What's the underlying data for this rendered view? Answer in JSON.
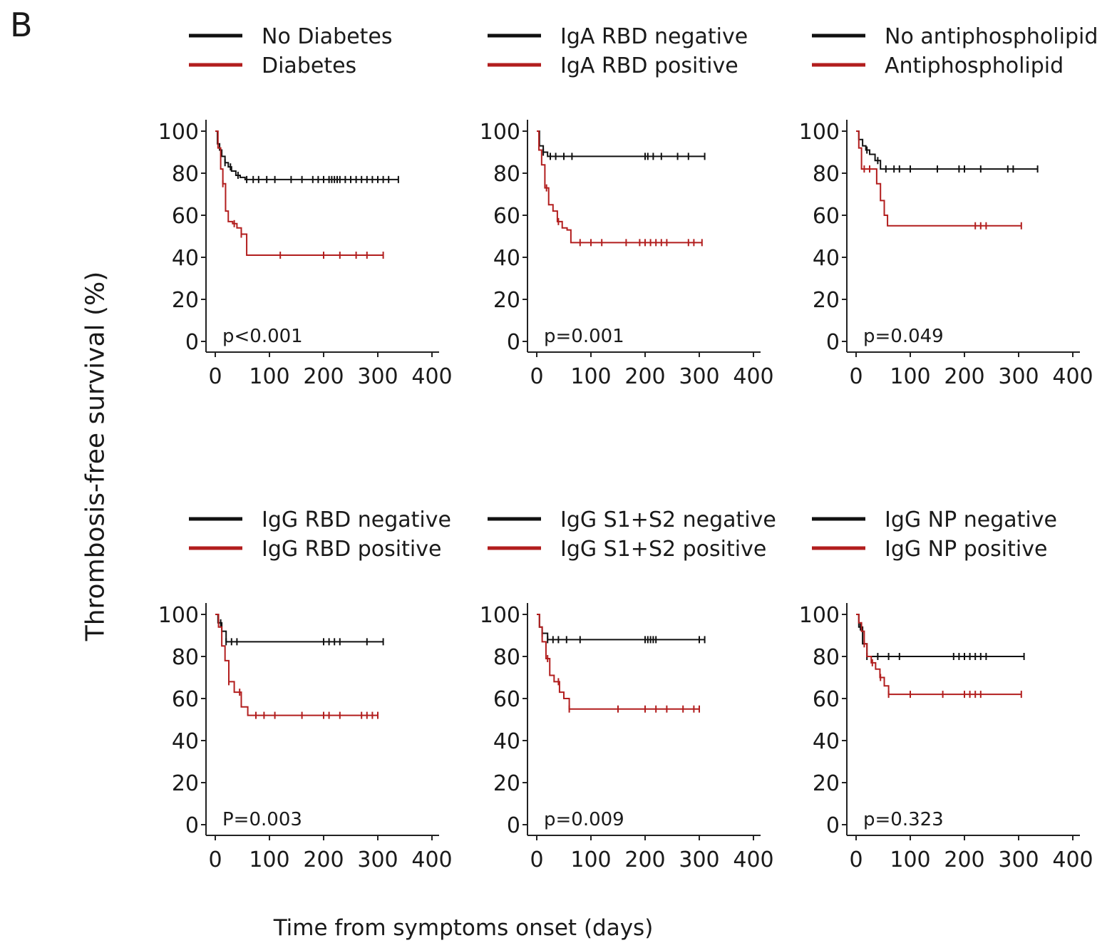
{
  "panel_label": "B",
  "shared_ylabel": "Thrombosis-free survival (%)",
  "shared_xlabel": "Time from symptoms onset (days)",
  "colors": {
    "reference": "#111111",
    "group": "#b21e1e"
  },
  "chart_data": [
    {
      "type": "line",
      "xlim": [
        0,
        400
      ],
      "ylim": [
        0,
        100
      ],
      "xticks": [
        0,
        100,
        200,
        300,
        400
      ],
      "yticks": [
        0,
        20,
        40,
        60,
        80,
        100
      ],
      "grid": false,
      "legend_position": "top",
      "annotation": "p<0.001",
      "series": [
        {
          "name": "No Diabetes",
          "color": "#111111",
          "x": [
            0,
            4,
            8,
            12,
            18,
            24,
            30,
            38,
            46,
            55,
            338
          ],
          "y": [
            100,
            94,
            91,
            88,
            85,
            83,
            81,
            79,
            78,
            77,
            77
          ],
          "censored_x": [
            18,
            28,
            42,
            58,
            70,
            80,
            95,
            110,
            140,
            160,
            180,
            190,
            200,
            210,
            215,
            220,
            225,
            230,
            240,
            250,
            260,
            270,
            280,
            290,
            300,
            310,
            320,
            338
          ]
        },
        {
          "name": "Diabetes",
          "color": "#b21e1e",
          "x": [
            0,
            5,
            10,
            14,
            19,
            24,
            32,
            40,
            48,
            58,
            310
          ],
          "y": [
            100,
            92,
            82,
            75,
            62,
            57,
            56,
            54,
            51,
            41,
            41
          ],
          "censored_x": [
            14,
            35,
            48,
            120,
            200,
            230,
            260,
            280,
            310
          ]
        }
      ]
    },
    {
      "type": "line",
      "xlim": [
        0,
        400
      ],
      "ylim": [
        0,
        100
      ],
      "xticks": [
        0,
        100,
        200,
        300,
        400
      ],
      "yticks": [
        0,
        20,
        40,
        60,
        80,
        100
      ],
      "grid": false,
      "legend_position": "top",
      "annotation": "p=0.001",
      "series": [
        {
          "name": "IgA RBD negative",
          "color": "#111111",
          "x": [
            0,
            5,
            12,
            20,
            310
          ],
          "y": [
            100,
            93,
            90,
            88,
            88
          ],
          "censored_x": [
            12,
            25,
            35,
            50,
            65,
            200,
            205,
            215,
            230,
            260,
            280,
            310
          ]
        },
        {
          "name": "IgA RBD positive",
          "color": "#b21e1e",
          "x": [
            0,
            4,
            9,
            15,
            22,
            30,
            38,
            47,
            56,
            63,
            305
          ],
          "y": [
            100,
            91,
            84,
            73,
            65,
            62,
            57,
            54,
            53,
            47,
            47
          ],
          "censored_x": [
            18,
            40,
            80,
            100,
            120,
            165,
            190,
            200,
            210,
            220,
            230,
            240,
            280,
            290,
            305
          ]
        }
      ]
    },
    {
      "type": "line",
      "xlim": [
        0,
        400
      ],
      "ylim": [
        0,
        100
      ],
      "xticks": [
        0,
        100,
        200,
        300,
        400
      ],
      "yticks": [
        0,
        20,
        40,
        60,
        80,
        100
      ],
      "grid": false,
      "legend_position": "top",
      "annotation": "p=0.049",
      "series": [
        {
          "name": "No antiphospholipid",
          "color": "#111111",
          "x": [
            0,
            5,
            12,
            18,
            25,
            35,
            45,
            335
          ],
          "y": [
            100,
            96,
            93,
            91,
            89,
            86,
            82,
            82
          ],
          "censored_x": [
            20,
            40,
            55,
            70,
            80,
            100,
            150,
            190,
            200,
            230,
            280,
            290,
            335
          ]
        },
        {
          "name": "Antiphospholipid",
          "color": "#b21e1e",
          "x": [
            0,
            5,
            10,
            38,
            45,
            52,
            58,
            305
          ],
          "y": [
            100,
            92,
            82,
            75,
            67,
            60,
            55,
            55
          ],
          "censored_x": [
            15,
            25,
            220,
            230,
            240,
            305
          ]
        }
      ]
    },
    {
      "type": "line",
      "xlim": [
        0,
        400
      ],
      "ylim": [
        0,
        100
      ],
      "xticks": [
        0,
        100,
        200,
        300,
        400
      ],
      "yticks": [
        0,
        20,
        40,
        60,
        80,
        100
      ],
      "grid": false,
      "legend_position": "top",
      "annotation": "P=0.003",
      "series": [
        {
          "name": "IgG RBD negative",
          "color": "#111111",
          "x": [
            0,
            5,
            12,
            20,
            310
          ],
          "y": [
            100,
            96,
            92,
            87,
            87
          ],
          "censored_x": [
            10,
            20,
            30,
            40,
            200,
            210,
            220,
            230,
            280,
            310
          ]
        },
        {
          "name": "IgG RBD positive",
          "color": "#b21e1e",
          "x": [
            0,
            6,
            12,
            18,
            25,
            35,
            48,
            60,
            300
          ],
          "y": [
            100,
            94,
            85,
            78,
            68,
            63,
            56,
            52,
            52
          ],
          "censored_x": [
            25,
            45,
            75,
            90,
            110,
            160,
            200,
            210,
            230,
            270,
            280,
            290,
            300
          ]
        }
      ]
    },
    {
      "type": "line",
      "xlim": [
        0,
        400
      ],
      "ylim": [
        0,
        100
      ],
      "xticks": [
        0,
        100,
        200,
        300,
        400
      ],
      "yticks": [
        0,
        20,
        40,
        60,
        80,
        100
      ],
      "grid": false,
      "legend_position": "top",
      "annotation": "p=0.009",
      "series": [
        {
          "name": "IgG S1+S2 negative",
          "color": "#111111",
          "x": [
            0,
            5,
            10,
            20,
            310
          ],
          "y": [
            100,
            94,
            91,
            88,
            88
          ],
          "censored_x": [
            10,
            20,
            30,
            40,
            55,
            80,
            200,
            205,
            210,
            215,
            220,
            300,
            310
          ]
        },
        {
          "name": "IgG S1+S2 positive",
          "color": "#b21e1e",
          "x": [
            0,
            5,
            10,
            17,
            24,
            32,
            42,
            50,
            60,
            300
          ],
          "y": [
            100,
            94,
            87,
            79,
            71,
            68,
            63,
            60,
            55,
            55
          ],
          "censored_x": [
            20,
            40,
            60,
            150,
            200,
            220,
            240,
            270,
            290,
            300
          ]
        }
      ]
    },
    {
      "type": "line",
      "xlim": [
        0,
        400
      ],
      "ylim": [
        0,
        100
      ],
      "xticks": [
        0,
        100,
        200,
        300,
        400
      ],
      "yticks": [
        0,
        20,
        40,
        60,
        80,
        100
      ],
      "grid": false,
      "legend_position": "top",
      "annotation": "p=0.323",
      "series": [
        {
          "name": "IgG NP negative",
          "color": "#111111",
          "x": [
            0,
            5,
            12,
            20,
            310
          ],
          "y": [
            100,
            94,
            86,
            80,
            80
          ],
          "censored_x": [
            8,
            20,
            40,
            60,
            80,
            180,
            190,
            200,
            210,
            220,
            230,
            240,
            310
          ]
        },
        {
          "name": "IgG NP positive",
          "color": "#b21e1e",
          "x": [
            0,
            5,
            10,
            15,
            20,
            28,
            36,
            44,
            52,
            60,
            305
          ],
          "y": [
            100,
            96,
            92,
            86,
            80,
            77,
            74,
            70,
            66,
            62,
            62
          ],
          "censored_x": [
            15,
            30,
            45,
            60,
            100,
            160,
            200,
            210,
            220,
            230,
            305
          ]
        }
      ]
    }
  ]
}
